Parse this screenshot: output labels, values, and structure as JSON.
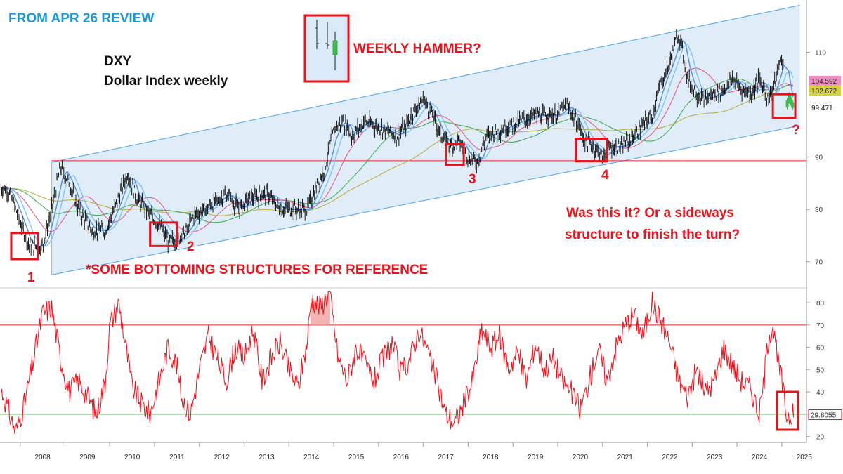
{
  "header": {
    "review_label": "FROM APR 26 REVIEW",
    "symbol": "DXY",
    "description": "Dollar Index weekly"
  },
  "annotations": {
    "hammer_label": "WEEKLY HAMMER?",
    "question_line1": "Was this it? Or a sideways",
    "question_line2": "structure to finish the turn?",
    "reference_note": "*SOME BOTTOMING STRUCTURES FOR REFERENCE",
    "bottom_labels": [
      "1",
      "2",
      "3",
      "4",
      "?"
    ]
  },
  "colors": {
    "price_line": "#000000",
    "channel_fill": "#dbeaf8",
    "channel_line": "#4aa3e6",
    "ma_fast": "#4d8fe0",
    "ma_mid": "#7fc4ee",
    "ma_pink": "#e0507f",
    "ma_green": "#3aa64a",
    "ma_olive": "#b6aa35",
    "support_line": "#e0262b",
    "rsi_line": "#e8141b",
    "rsi_upper": "#d42a2a",
    "rsi_lower": "#41b548",
    "annotation_red": "#e8141b",
    "review_blue": "#1a98d8"
  },
  "chart_data": [
    {
      "type": "line",
      "title": "DXY",
      "subtitle": "Dollar Index weekly",
      "x": [
        2007.7,
        2007.9,
        2008.2,
        2008.5,
        2008.7,
        2008.9,
        2009.1,
        2009.3,
        2009.6,
        2009.9,
        2010.1,
        2010.4,
        2010.6,
        2010.9,
        2011.1,
        2011.3,
        2011.5,
        2011.7,
        2011.9,
        2012.3,
        2012.6,
        2012.9,
        2013.1,
        2013.5,
        2013.8,
        2014.1,
        2014.4,
        2014.6,
        2014.8,
        2015.0,
        2015.2,
        2015.4,
        2015.7,
        2015.9,
        2016.2,
        2016.4,
        2016.6,
        2016.8,
        2017.0,
        2017.2,
        2017.4,
        2017.6,
        2017.8,
        2018.0,
        2018.2,
        2018.4,
        2018.7,
        2018.9,
        2019.2,
        2019.5,
        2019.8,
        2020.0,
        2020.2,
        2020.4,
        2020.6,
        2020.8,
        2021.0,
        2021.2,
        2021.4,
        2021.7,
        2021.9,
        2022.1,
        2022.3,
        2022.5,
        2022.7,
        2022.9,
        2023.1,
        2023.3,
        2023.5,
        2023.7,
        2023.9,
        2024.1,
        2024.3,
        2024.5,
        2024.7,
        2024.8,
        2025.0,
        2025.1,
        2025.2,
        2025.3
      ],
      "values": [
        84,
        80,
        73,
        73,
        80,
        88,
        85,
        80,
        76,
        76,
        80,
        87,
        82,
        79,
        77,
        74,
        74,
        76,
        79,
        81,
        83,
        80,
        82,
        83,
        80,
        80,
        80,
        84,
        88,
        95,
        97,
        94,
        97,
        96,
        95,
        94,
        96,
        99,
        101,
        98,
        94,
        92,
        93,
        90,
        89,
        94,
        95,
        96,
        97,
        98,
        98,
        98,
        100,
        97,
        93,
        92,
        90,
        92,
        92,
        94,
        96,
        98,
        104,
        108,
        114,
        105,
        102,
        101,
        102,
        103,
        105,
        103,
        102,
        105,
        101,
        103,
        109,
        104,
        99,
        99.471
      ],
      "ylim": [
        65,
        120
      ],
      "yticks": [
        70,
        80,
        90,
        110
      ],
      "last_value": 99.471,
      "reference_values": [
        104.592,
        102.672
      ],
      "support_level": 89.3,
      "channel": {
        "upper": [
          [
            2008.7,
            89
          ],
          [
            2025.4,
            119
          ]
        ],
        "lower": [
          [
            2008.7,
            67.5
          ],
          [
            2025.4,
            96
          ]
        ]
      },
      "marked_bottoms": [
        {
          "label": "1",
          "x": [
            2007.8,
            2008.4
          ],
          "y": [
            70.5,
            75.5
          ]
        },
        {
          "label": "2",
          "x": [
            2010.9,
            2011.5
          ],
          "y": [
            73,
            77.5
          ]
        },
        {
          "label": "3",
          "x": [
            2017.5,
            2017.9
          ],
          "y": [
            88.5,
            92.5
          ]
        },
        {
          "label": "4",
          "x": [
            2020.4,
            2021.1
          ],
          "y": [
            89.2,
            93.5
          ]
        },
        {
          "label": "?",
          "x": [
            2024.8,
            2025.3
          ],
          "y": [
            97.5,
            102
          ]
        }
      ]
    },
    {
      "type": "line",
      "title": "",
      "x": [
        2007.6,
        2007.8,
        2007.9,
        2008.1,
        2008.3,
        2008.5,
        2008.7,
        2008.9,
        2009.1,
        2009.3,
        2009.5,
        2009.7,
        2009.9,
        2010.0,
        2010.2,
        2010.4,
        2010.5,
        2010.7,
        2010.9,
        2011.1,
        2011.3,
        2011.5,
        2011.6,
        2011.8,
        2012.0,
        2012.2,
        2012.4,
        2012.6,
        2012.8,
        2013.0,
        2013.2,
        2013.4,
        2013.6,
        2013.8,
        2014.0,
        2014.2,
        2014.4,
        2014.5,
        2014.7,
        2014.9,
        2015.1,
        2015.3,
        2015.5,
        2015.7,
        2015.9,
        2016.1,
        2016.3,
        2016.5,
        2016.7,
        2016.9,
        2017.1,
        2017.3,
        2017.5,
        2017.7,
        2017.9,
        2018.1,
        2018.3,
        2018.5,
        2018.7,
        2018.9,
        2019.1,
        2019.3,
        2019.5,
        2019.7,
        2019.9,
        2020.1,
        2020.3,
        2020.5,
        2020.7,
        2020.9,
        2021.1,
        2021.3,
        2021.5,
        2021.7,
        2021.9,
        2022.1,
        2022.3,
        2022.5,
        2022.7,
        2022.9,
        2023.1,
        2023.3,
        2023.5,
        2023.7,
        2023.9,
        2024.1,
        2024.3,
        2024.5,
        2024.6,
        2024.7,
        2024.8,
        2024.9,
        2025.0,
        2025.1,
        2025.2,
        2025.3
      ],
      "values": [
        40,
        28,
        22,
        35,
        55,
        75,
        78,
        55,
        40,
        45,
        38,
        30,
        45,
        70,
        80,
        55,
        42,
        35,
        30,
        45,
        60,
        52,
        38,
        30,
        50,
        65,
        55,
        45,
        60,
        55,
        68,
        45,
        55,
        62,
        50,
        42,
        62,
        82,
        78,
        85,
        55,
        45,
        60,
        52,
        45,
        55,
        62,
        48,
        55,
        68,
        58,
        45,
        30,
        26,
        35,
        45,
        68,
        60,
        65,
        50,
        58,
        45,
        62,
        50,
        55,
        45,
        40,
        32,
        45,
        60,
        45,
        60,
        70,
        75,
        65,
        80,
        72,
        62,
        45,
        38,
        50,
        40,
        45,
        60,
        52,
        45,
        42,
        30,
        45,
        65,
        70,
        55,
        45,
        30,
        29.8,
        29.8055
      ],
      "ylim": [
        18,
        86
      ],
      "yticks": [
        20,
        30,
        40,
        50,
        60,
        70,
        80
      ],
      "reference_lines": {
        "upper": 70,
        "lower": 30
      },
      "last_value": 29.8055
    }
  ],
  "year_ticks": [
    "2008",
    "2009",
    "2010",
    "2011",
    "2012",
    "2013",
    "2014",
    "2015",
    "2016",
    "2017",
    "2018",
    "2019",
    "2020",
    "2021",
    "2022",
    "2023",
    "2024",
    "2025"
  ]
}
